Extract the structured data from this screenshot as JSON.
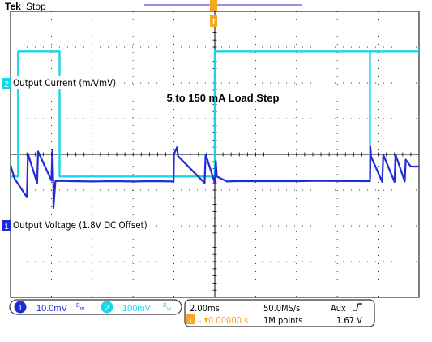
{
  "header": {
    "brand": "Tek",
    "status": "Stop"
  },
  "annotation": "5 to 150 mA Load Step",
  "channels": [
    {
      "number": "1",
      "label": "Output Voltage (1.8V DC Offset)",
      "scale": "10.0mV",
      "bw_marker": "B",
      "coupling_glyph": "w",
      "color": "#1f2bd6"
    },
    {
      "number": "2",
      "label": "Output Current (mA/mV)",
      "scale": "100mV",
      "bw_marker": "B",
      "coupling_glyph": "w",
      "color": "#19d6e6"
    }
  ],
  "trigger_marker": "T",
  "timebase": {
    "time_per_div": "2.00ms",
    "sample_rate": "50.0MS/s",
    "trigger_source": "Aux",
    "trigger_slope_icon": "rising-edge-icon",
    "trigger_position_prefix": "→▼",
    "trigger_position": "0.00000 s",
    "record_length": "1M points",
    "trigger_level": "1.67 V"
  },
  "chart_data": {
    "type": "line",
    "title": "5 to 150 mA Load Step",
    "x_unit": "ms",
    "x_range": [
      -10,
      10
    ],
    "divisions": {
      "horizontal": 10,
      "vertical": 8
    },
    "grid": true,
    "series": [
      {
        "name": "Output Current (mA/mV)",
        "channel": 2,
        "unit": "mV",
        "y_range": [
          -400,
          400
        ],
        "points": [
          [
            -10,
            -62
          ],
          [
            -9.63,
            -62
          ],
          [
            -9.63,
            288
          ],
          [
            -8.2,
            288
          ],
          [
            -8.2,
            288
          ],
          [
            -7.6,
            288
          ],
          [
            -7.6,
            -62
          ],
          [
            -2.02,
            -62
          ],
          [
            -2.02,
            -62
          ],
          [
            -1.85,
            -62
          ],
          [
            -1.85,
            -62
          ],
          [
            -1.85,
            -62
          ],
          [
            -1.85,
            -62
          ],
          [
            0,
            -62
          ],
          [
            0,
            -62
          ],
          [
            0,
            288
          ],
          [
            7.6,
            288
          ],
          [
            7.6,
            -62
          ],
          [
            7.6,
            -62
          ],
          [
            7.6,
            -62
          ],
          [
            7.62,
            -62
          ],
          [
            7.62,
            -62
          ],
          [
            7.6,
            -62
          ],
          [
            7.6,
            -62
          ],
          [
            7.6,
            -62
          ],
          [
            7.6,
            -62
          ],
          [
            7.6,
            -62
          ],
          [
            7.6,
            288
          ],
          [
            10,
            288
          ]
        ]
      },
      {
        "name": "Output Voltage (1.8V DC Offset)",
        "channel": 1,
        "unit": "mV",
        "y_range": [
          -40,
          40
        ],
        "points": [
          [
            -10,
            -3.1
          ],
          [
            -9.8,
            -6.8
          ],
          [
            -9.2,
            -12
          ],
          [
            -9.15,
            0.2
          ],
          [
            -8.7,
            -8
          ],
          [
            -8.65,
            0.8
          ],
          [
            -8.0,
            -7.3
          ],
          [
            -7.95,
            1.2
          ],
          [
            -7.9,
            -9.6
          ],
          [
            -7.9,
            -15
          ],
          [
            -7.8,
            -7.5
          ],
          [
            -7.5,
            -7.4
          ],
          [
            -7,
            -7.5
          ],
          [
            -6,
            -7.6
          ],
          [
            -5,
            -7.5
          ],
          [
            -4,
            -7.6
          ],
          [
            -3,
            -7.5
          ],
          [
            -2.02,
            -7.6
          ],
          [
            -2.0,
            0.1
          ],
          [
            -1.85,
            2.0
          ],
          [
            -1.8,
            -0.5
          ],
          [
            -0.5,
            -8.0
          ],
          [
            -0.45,
            0.0
          ],
          [
            0.0,
            -8.0
          ],
          [
            0.05,
            -1.9
          ],
          [
            0.1,
            -6.2
          ],
          [
            0.6,
            -7.6
          ],
          [
            1,
            -7.5
          ],
          [
            2,
            -7.5
          ],
          [
            3,
            -7.5
          ],
          [
            4,
            -7.5
          ],
          [
            5,
            -7.4
          ],
          [
            7.6,
            -7.5
          ],
          [
            7.62,
            -1.9
          ],
          [
            7.62,
            2.1
          ],
          [
            7.65,
            -0.6
          ],
          [
            8.2,
            -7.7
          ],
          [
            8.25,
            -0.1
          ],
          [
            8.8,
            -7.7
          ],
          [
            8.85,
            -0.1
          ],
          [
            9.3,
            -7.6
          ],
          [
            9.35,
            -1.5
          ],
          [
            9.6,
            -3.4
          ],
          [
            10,
            -3.4
          ]
        ]
      }
    ]
  }
}
